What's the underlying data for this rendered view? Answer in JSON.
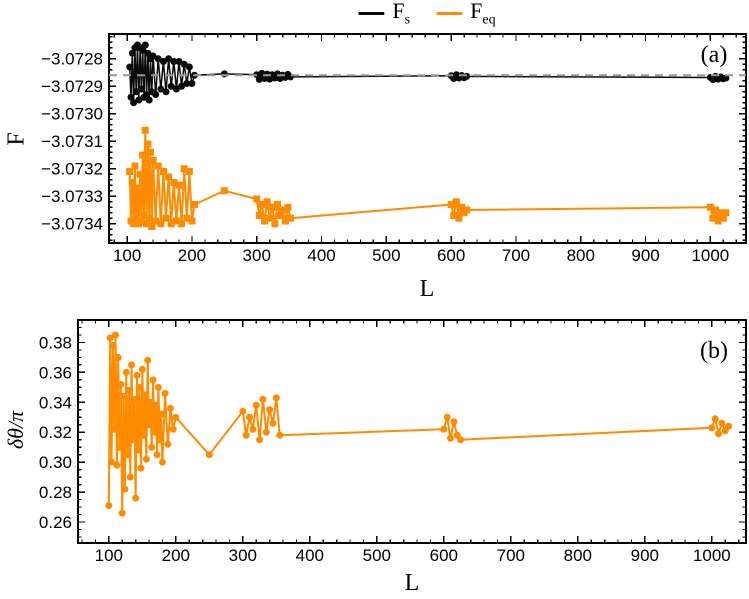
{
  "figure": {
    "background": "#ffffff"
  },
  "legend": {
    "items": [
      {
        "main": "F",
        "sub": "s",
        "color": "#0a0a0a"
      },
      {
        "main": "F",
        "sub": "eq",
        "color": "#FF8C00"
      }
    ]
  },
  "chart_data": [
    {
      "id": "panel-a",
      "type": "line",
      "panel_label": "(a)",
      "xlabel": "L",
      "ylabel": "F",
      "xlim": [
        72,
        1055
      ],
      "ylim": [
        -3.07347,
        -3.07271
      ],
      "grid": "off",
      "legend_position": "top-center",
      "xticks": {
        "values": [
          100,
          200,
          300,
          400,
          500,
          600,
          700,
          800,
          900,
          1000
        ],
        "labels": [
          "100",
          "200",
          "300",
          "400",
          "500",
          "600",
          "700",
          "800",
          "900",
          "1000"
        ],
        "minor_step": 20
      },
      "yticks": {
        "values": [
          -3.0728,
          -3.0729,
          -3.073,
          -3.0731,
          -3.0732,
          -3.0733,
          -3.0734
        ],
        "labels": [
          "−3.0728",
          "−3.0729",
          "−3.0730",
          "−3.0731",
          "−3.0732",
          "−3.0733",
          "−3.0734"
        ],
        "minor_step": 2e-05
      },
      "reference_line": {
        "y": -3.07286,
        "color": "#999999",
        "style": "dashed"
      },
      "series": [
        {
          "name": "Fs",
          "color": "#0a0a0a",
          "marker": "circle",
          "marker_size": 7,
          "line_width": 1.5,
          "points": [
            [
              104,
              -3.07283
            ],
            [
              106,
              -3.07294
            ],
            [
              108,
              -3.07278
            ],
            [
              110,
              -3.07296
            ],
            [
              112,
              -3.07276
            ],
            [
              114,
              -3.07292
            ],
            [
              116,
              -3.07275
            ],
            [
              118,
              -3.07295
            ],
            [
              120,
              -3.07276
            ],
            [
              122,
              -3.07291
            ],
            [
              124,
              -3.07277
            ],
            [
              126,
              -3.07294
            ],
            [
              128,
              -3.07275
            ],
            [
              130,
              -3.07293
            ],
            [
              132,
              -3.07278
            ],
            [
              134,
              -3.07295
            ],
            [
              136,
              -3.0728
            ],
            [
              138,
              -3.07292
            ],
            [
              140,
              -3.07279
            ],
            [
              144,
              -3.07293
            ],
            [
              148,
              -3.0728
            ],
            [
              152,
              -3.07291
            ],
            [
              156,
              -3.07281
            ],
            [
              160,
              -3.07292
            ],
            [
              164,
              -3.0728
            ],
            [
              168,
              -3.0729
            ],
            [
              172,
              -3.07281
            ],
            [
              176,
              -3.07291
            ],
            [
              180,
              -3.07281
            ],
            [
              184,
              -3.0729
            ],
            [
              188,
              -3.07282
            ],
            [
              192,
              -3.07289
            ],
            [
              196,
              -3.07283
            ],
            [
              200,
              -3.07289
            ],
            [
              204,
              -3.07286
            ],
            [
              250,
              -3.072855
            ],
            [
              300,
              -3.072858
            ],
            [
              304,
              -3.072875
            ],
            [
              308,
              -3.072853
            ],
            [
              312,
              -3.072872
            ],
            [
              316,
              -3.072856
            ],
            [
              320,
              -3.072874
            ],
            [
              324,
              -3.072858
            ],
            [
              328,
              -3.07287
            ],
            [
              332,
              -3.072855
            ],
            [
              336,
              -3.072872
            ],
            [
              340,
              -3.07286
            ],
            [
              344,
              -3.072868
            ],
            [
              348,
              -3.072857
            ],
            [
              352,
              -3.072866
            ],
            [
              600,
              -3.072862
            ],
            [
              604,
              -3.072872
            ],
            [
              608,
              -3.072858
            ],
            [
              612,
              -3.07287
            ],
            [
              616,
              -3.072861
            ],
            [
              620,
              -3.072869
            ],
            [
              624,
              -3.072864
            ],
            [
              1000,
              -3.072868
            ],
            [
              1004,
              -3.072876
            ],
            [
              1008,
              -3.072864
            ],
            [
              1012,
              -3.072874
            ],
            [
              1016,
              -3.072866
            ],
            [
              1020,
              -3.072873
            ],
            [
              1024,
              -3.07287
            ]
          ]
        },
        {
          "name": "Feq",
          "color": "#FF8C00",
          "marker": "square",
          "marker_size": 7,
          "line_width": 2,
          "points": [
            [
              104,
              -3.07321
            ],
            [
              106,
              -3.07339
            ],
            [
              108,
              -3.07325
            ],
            [
              110,
              -3.0734
            ],
            [
              112,
              -3.07319
            ],
            [
              114,
              -3.07338
            ],
            [
              116,
              -3.07327
            ],
            [
              118,
              -3.0734
            ],
            [
              120,
              -3.07322
            ],
            [
              122,
              -3.07339
            ],
            [
              124,
              -3.07315
            ],
            [
              126,
              -3.07337
            ],
            [
              128,
              -3.07306
            ],
            [
              130,
              -3.0734
            ],
            [
              132,
              -3.07311
            ],
            [
              134,
              -3.07338
            ],
            [
              136,
              -3.07314
            ],
            [
              138,
              -3.07341
            ],
            [
              140,
              -3.07317
            ],
            [
              144,
              -3.07339
            ],
            [
              148,
              -3.07319
            ],
            [
              152,
              -3.0734
            ],
            [
              156,
              -3.07321
            ],
            [
              160,
              -3.07338
            ],
            [
              164,
              -3.07323
            ],
            [
              168,
              -3.0734
            ],
            [
              172,
              -3.07325
            ],
            [
              176,
              -3.07339
            ],
            [
              180,
              -3.07326
            ],
            [
              184,
              -3.0734
            ],
            [
              188,
              -3.0732
            ],
            [
              192,
              -3.07338
            ],
            [
              196,
              -3.07321
            ],
            [
              200,
              -3.07339
            ],
            [
              204,
              -3.07333
            ],
            [
              250,
              -3.07328
            ],
            [
              300,
              -3.07331
            ],
            [
              304,
              -3.07337
            ],
            [
              308,
              -3.07333
            ],
            [
              312,
              -3.07339
            ],
            [
              316,
              -3.07332
            ],
            [
              320,
              -3.07338
            ],
            [
              324,
              -3.07334
            ],
            [
              328,
              -3.0734
            ],
            [
              332,
              -3.07333
            ],
            [
              336,
              -3.07337
            ],
            [
              340,
              -3.07335
            ],
            [
              344,
              -3.07339
            ],
            [
              348,
              -3.07334
            ],
            [
              352,
              -3.07338
            ],
            [
              600,
              -3.07333
            ],
            [
              604,
              -3.07337
            ],
            [
              608,
              -3.07332
            ],
            [
              612,
              -3.07338
            ],
            [
              616,
              -3.07334
            ],
            [
              620,
              -3.07336
            ],
            [
              624,
              -3.07335
            ],
            [
              1000,
              -3.07334
            ],
            [
              1004,
              -3.07338
            ],
            [
              1008,
              -3.07335
            ],
            [
              1012,
              -3.07339
            ],
            [
              1016,
              -3.07336
            ],
            [
              1020,
              -3.07338
            ],
            [
              1024,
              -3.07336
            ]
          ]
        }
      ]
    },
    {
      "id": "panel-b",
      "type": "line",
      "panel_label": "(b)",
      "xlabel": "L",
      "ylabel": "δθ/π",
      "xlim": [
        54,
        1051
      ],
      "ylim": [
        0.246,
        0.395
      ],
      "grid": "off",
      "xticks": {
        "values": [
          100,
          200,
          300,
          400,
          500,
          600,
          700,
          800,
          900,
          1000
        ],
        "labels": [
          "100",
          "200",
          "300",
          "400",
          "500",
          "600",
          "700",
          "800",
          "900",
          "1000"
        ],
        "minor_step": 20
      },
      "yticks": {
        "values": [
          0.26,
          0.28,
          0.3,
          0.32,
          0.34,
          0.36,
          0.38
        ],
        "labels": [
          "0.26",
          "0.28",
          "0.30",
          "0.32",
          "0.34",
          "0.36",
          "0.38"
        ],
        "minor_step": 0.005
      },
      "series": [
        {
          "name": "Feq",
          "color": "#FF8C00",
          "marker": "circle",
          "marker_size": 7,
          "line_width": 2,
          "points": [
            [
              100,
              0.271
            ],
            [
              102,
              0.383
            ],
            [
              104,
              0.3
            ],
            [
              106,
              0.378
            ],
            [
              108,
              0.322
            ],
            [
              110,
              0.385
            ],
            [
              112,
              0.298
            ],
            [
              114,
              0.37
            ],
            [
              116,
              0.31
            ],
            [
              118,
              0.352
            ],
            [
              120,
              0.266
            ],
            [
              122,
              0.344
            ],
            [
              124,
              0.282
            ],
            [
              126,
              0.36
            ],
            [
              128,
              0.305
            ],
            [
              130,
              0.348
            ],
            [
              132,
              0.29
            ],
            [
              134,
              0.365
            ],
            [
              136,
              0.315
            ],
            [
              138,
              0.342
            ],
            [
              140,
              0.276
            ],
            [
              142,
              0.358
            ],
            [
              144,
              0.308
            ],
            [
              146,
              0.35
            ],
            [
              148,
              0.296
            ],
            [
              150,
              0.362
            ],
            [
              152,
              0.318
            ],
            [
              154,
              0.345
            ],
            [
              156,
              0.302
            ],
            [
              158,
              0.368
            ],
            [
              160,
              0.325
            ],
            [
              162,
              0.34
            ],
            [
              164,
              0.31
            ],
            [
              166,
              0.355
            ],
            [
              168,
              0.32
            ],
            [
              170,
              0.338
            ],
            [
              172,
              0.305
            ],
            [
              174,
              0.35
            ],
            [
              176,
              0.315
            ],
            [
              178,
              0.332
            ],
            [
              180,
              0.3
            ],
            [
              184,
              0.346
            ],
            [
              188,
              0.312
            ],
            [
              192,
              0.336
            ],
            [
              196,
              0.322
            ],
            [
              200,
              0.33
            ],
            [
              250,
              0.305
            ],
            [
              300,
              0.334
            ],
            [
              305,
              0.318
            ],
            [
              310,
              0.33
            ],
            [
              315,
              0.322
            ],
            [
              320,
              0.338
            ],
            [
              325,
              0.315
            ],
            [
              330,
              0.342
            ],
            [
              335,
              0.32
            ],
            [
              340,
              0.335
            ],
            [
              345,
              0.326
            ],
            [
              350,
              0.343
            ],
            [
              355,
              0.318
            ],
            [
              600,
              0.322
            ],
            [
              605,
              0.33
            ],
            [
              610,
              0.316
            ],
            [
              615,
              0.327
            ],
            [
              620,
              0.318
            ],
            [
              625,
              0.315
            ],
            [
              1000,
              0.323
            ],
            [
              1005,
              0.329
            ],
            [
              1010,
              0.319
            ],
            [
              1015,
              0.326
            ],
            [
              1020,
              0.321
            ],
            [
              1025,
              0.324
            ]
          ]
        }
      ]
    }
  ]
}
